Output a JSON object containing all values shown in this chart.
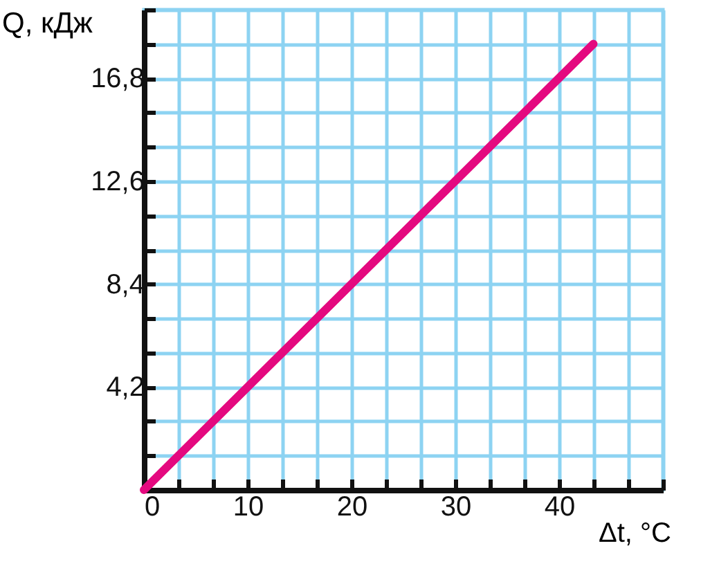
{
  "chart_data": {
    "type": "line",
    "xlabel": "Δt, °C",
    "ylabel": "Q, кДж",
    "x": [
      0,
      43.3
    ],
    "series": [
      {
        "color": "#e4097f",
        "values": [
          0,
          18.2
        ]
      }
    ],
    "xlim": [
      0,
      50
    ],
    "xticks": [
      0,
      {
        "value": 3.3,
        "label": null
      },
      {
        "value": 6.7,
        "label": null
      },
      10,
      {
        "value": 13.3,
        "label": null
      },
      {
        "value": 16.7,
        "label": null
      },
      20,
      {
        "value": 23.3,
        "label": null
      },
      {
        "value": 26.7,
        "label": null
      },
      30,
      {
        "value": 33.3,
        "label": null
      },
      {
        "value": 36.7,
        "label": null
      },
      40,
      {
        "value": 43.3,
        "label": null
      },
      {
        "value": 46.7,
        "label": null
      },
      {
        "value": 50,
        "label": null
      }
    ],
    "ylim": [
      0,
      19.6
    ],
    "yticks": [
      {
        "value": 0,
        "label": null
      },
      {
        "value": 1.4,
        "label": null
      },
      {
        "value": 2.8,
        "label": null
      },
      {
        "value": 4.2,
        "label": "4,2"
      },
      {
        "value": 5.6,
        "label": null
      },
      {
        "value": 7,
        "label": null
      },
      {
        "value": 8.4,
        "label": "8,4"
      },
      {
        "value": 9.8,
        "label": null
      },
      {
        "value": 11.2,
        "label": null
      },
      {
        "value": 12.6,
        "label": "12,6"
      },
      {
        "value": 14,
        "label": null
      },
      {
        "value": 15.4,
        "label": null
      },
      {
        "value": 16.8,
        "label": "16,8"
      },
      {
        "value": 18.2,
        "label": null
      },
      {
        "value": 19.6,
        "label": null
      }
    ],
    "grid": true,
    "marker": "none",
    "line_style": "solid"
  }
}
